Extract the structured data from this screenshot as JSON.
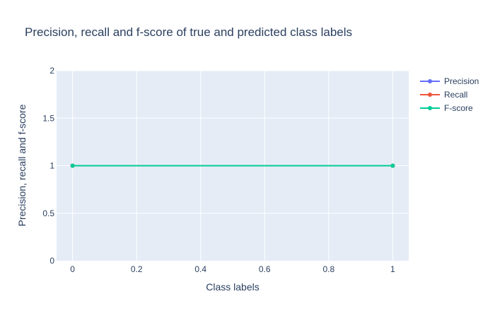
{
  "chart_data": {
    "type": "line",
    "title": "Precision, recall and f-score of true and predicted class labels",
    "xlabel": "Class labels",
    "ylabel": "Precision, recall and f-score",
    "xlim": [
      -0.05,
      1.05
    ],
    "ylim": [
      0,
      2
    ],
    "xticks": [
      0,
      0.2,
      0.4,
      0.6,
      0.8,
      1
    ],
    "xtick_labels": [
      "0",
      "0.2",
      "0.4",
      "0.6",
      "0.8",
      "1"
    ],
    "yticks": [
      0,
      0.5,
      1,
      1.5,
      2
    ],
    "ytick_labels": [
      "0",
      "0.5",
      "1",
      "1.5",
      "2"
    ],
    "grid": true,
    "legend_position": "top-right",
    "series": [
      {
        "name": "Precision",
        "color": "#636efa",
        "x": [
          0,
          1
        ],
        "y": [
          1,
          1
        ]
      },
      {
        "name": "Recall",
        "color": "#ef553b",
        "x": [
          0,
          1
        ],
        "y": [
          1,
          1
        ]
      },
      {
        "name": "F-score",
        "color": "#00cc96",
        "x": [
          0,
          1
        ],
        "y": [
          1,
          1
        ]
      }
    ]
  },
  "colors": {
    "plot_background": "#e5ecf6",
    "grid": "#ffffff",
    "text": "#2a3f5f",
    "tick_text": "#2a3f5f"
  }
}
